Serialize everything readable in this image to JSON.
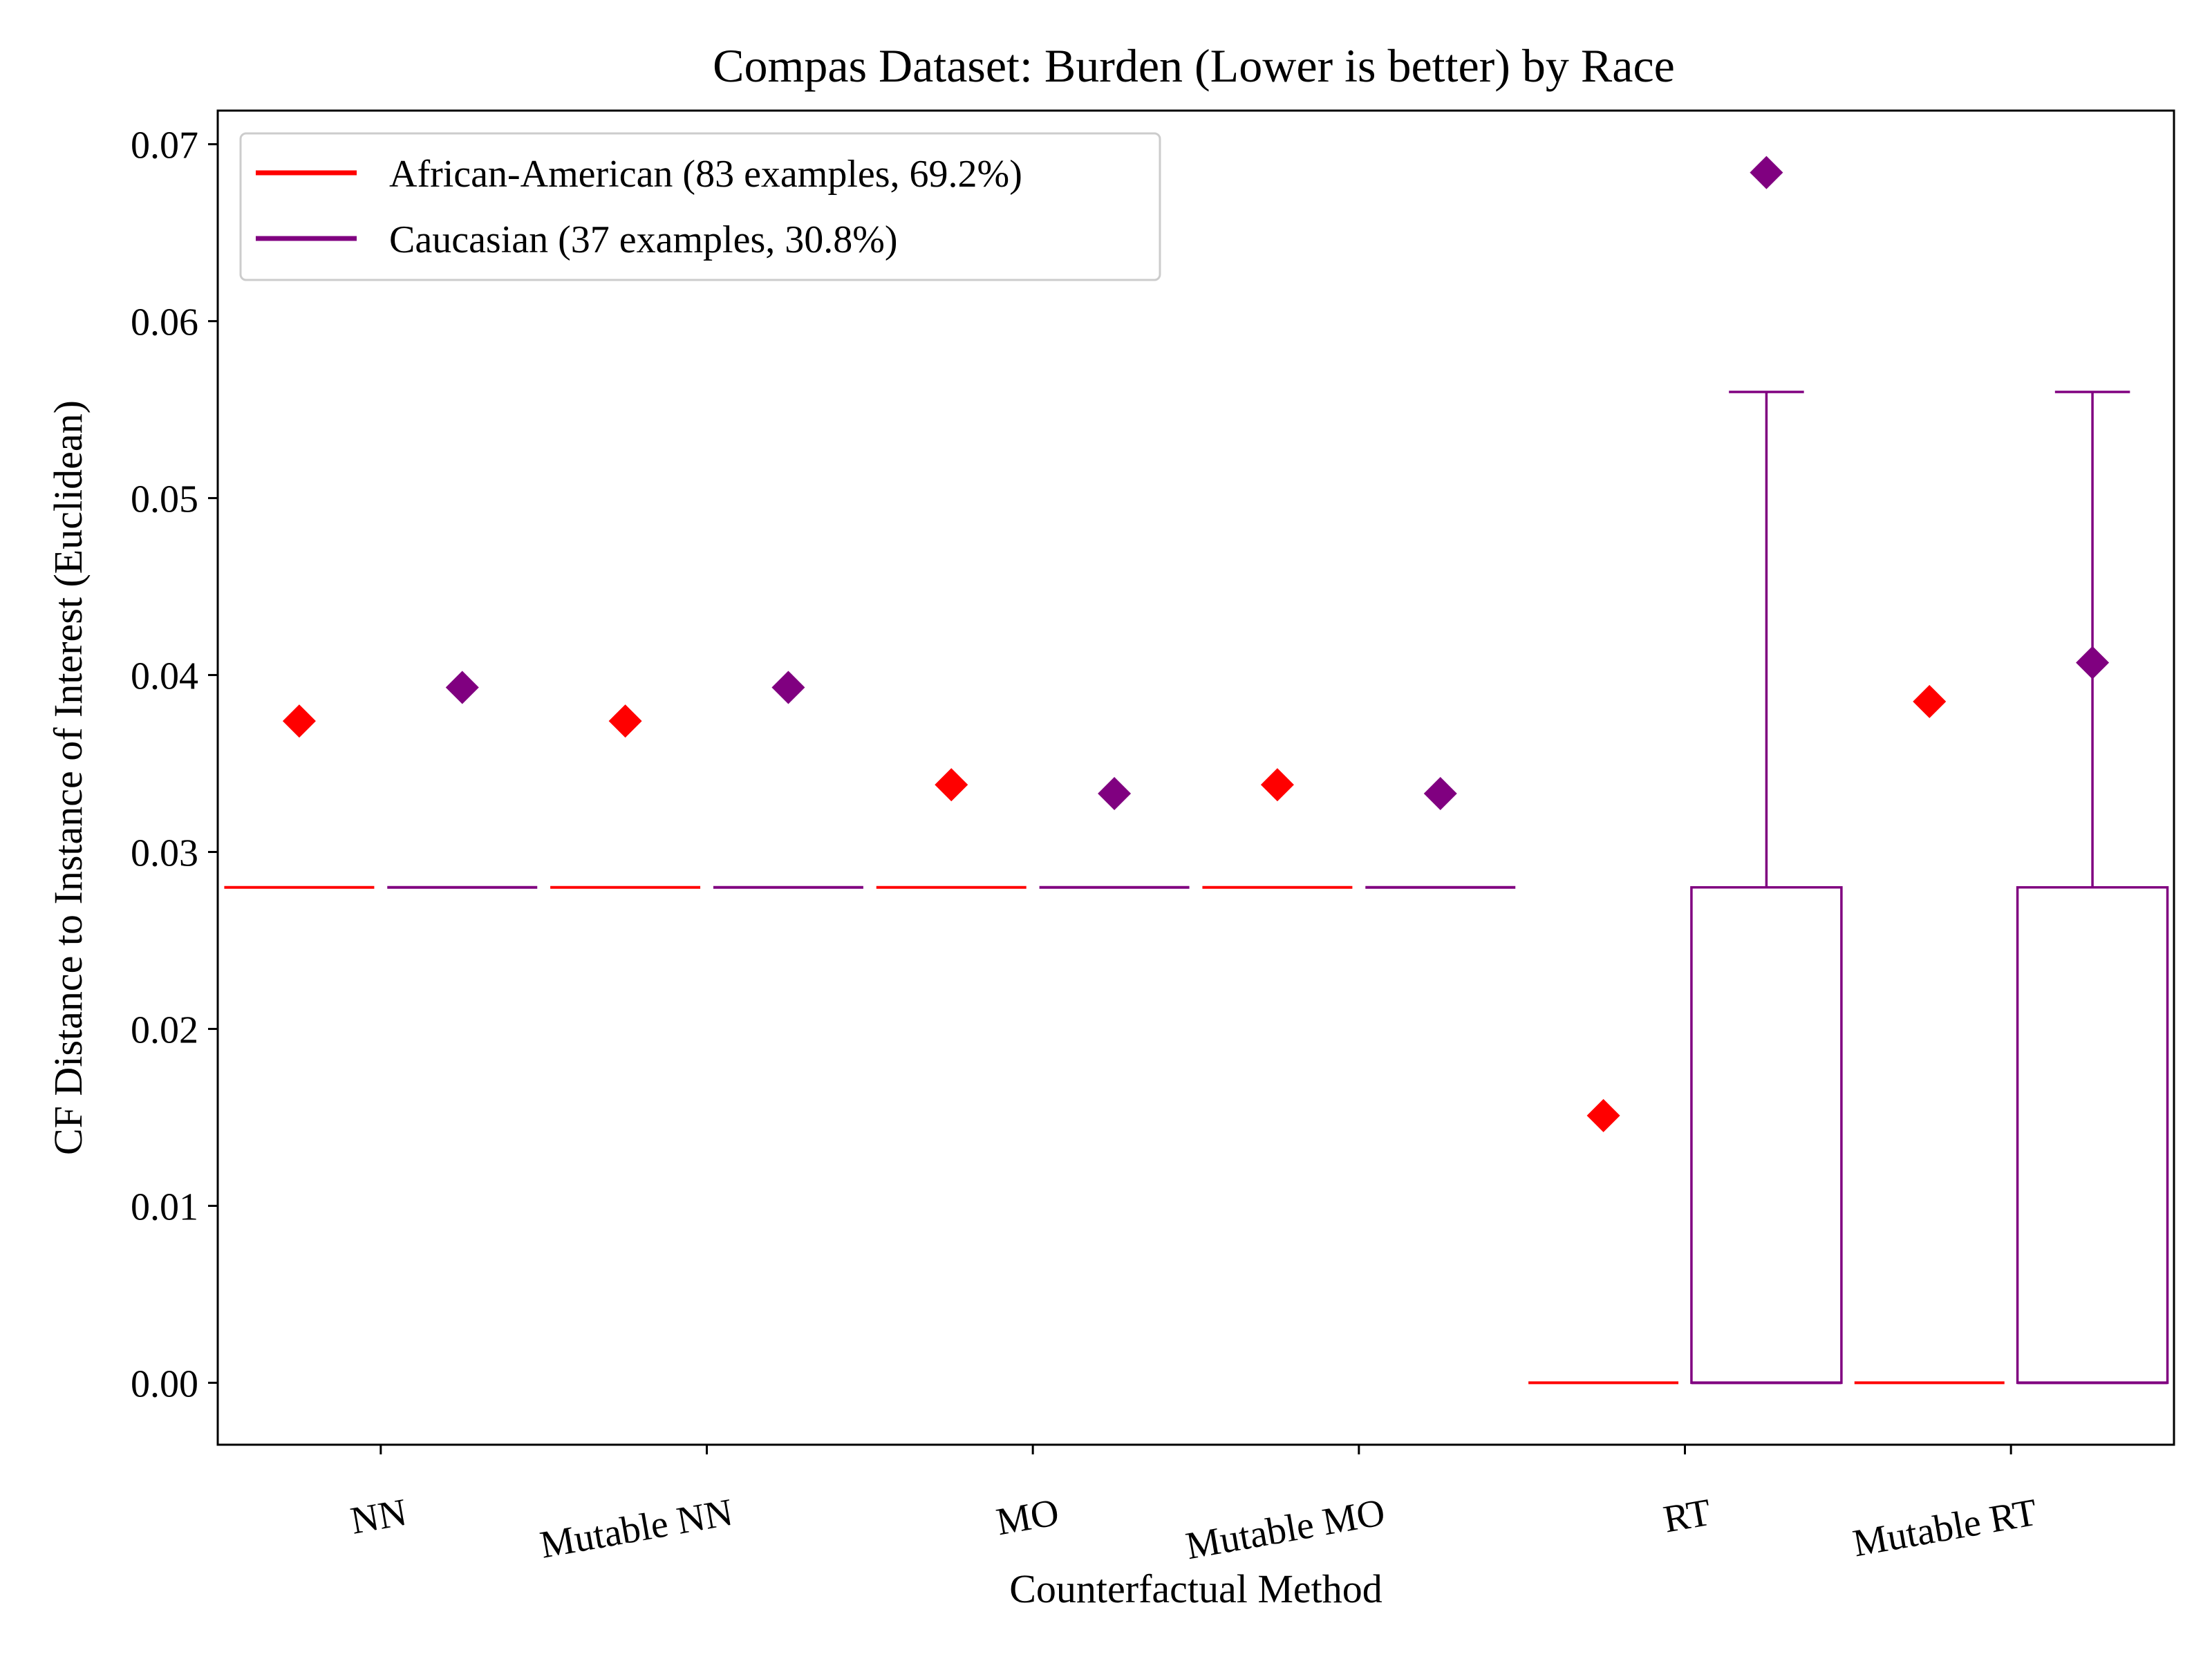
{
  "chart_data": {
    "type": "box",
    "title": "Compas Dataset: Burden (Lower is better) by Race",
    "xlabel": "Counterfactual Method",
    "ylabel": "CF Distance to Instance of Interest (Euclidean)",
    "categories": [
      "NN",
      "Mutable NN",
      "MO",
      "Mutable MO",
      "RT",
      "Mutable RT"
    ],
    "ylim": [
      -0.0035,
      0.0719
    ],
    "yticks": [
      "0.00",
      "0.01",
      "0.02",
      "0.03",
      "0.04",
      "0.05",
      "0.06",
      "0.07"
    ],
    "grid": false,
    "legend_position": "upper-left",
    "series": [
      {
        "name": "African-American (83 examples, 69.2%)",
        "color": "#ff0000",
        "boxes": [
          {
            "q1": 0.028,
            "median": 0.028,
            "q3": 0.028,
            "whislo": 0.028,
            "whishi": 0.028,
            "mean": 0.0374
          },
          {
            "q1": 0.028,
            "median": 0.028,
            "q3": 0.028,
            "whislo": 0.028,
            "whishi": 0.028,
            "mean": 0.0374
          },
          {
            "q1": 0.028,
            "median": 0.028,
            "q3": 0.028,
            "whislo": 0.028,
            "whishi": 0.028,
            "mean": 0.0338
          },
          {
            "q1": 0.028,
            "median": 0.028,
            "q3": 0.028,
            "whislo": 0.028,
            "whishi": 0.028,
            "mean": 0.0338
          },
          {
            "q1": 0.0,
            "median": 0.0,
            "q3": 0.0,
            "whislo": 0.0,
            "whishi": 0.0,
            "mean": 0.0151
          },
          {
            "q1": 0.0,
            "median": 0.0,
            "q3": 0.0,
            "whislo": 0.0,
            "whishi": 0.0,
            "mean": 0.0385
          }
        ]
      },
      {
        "name": "Caucasian (37 examples, 30.8%)",
        "color": "#800080",
        "boxes": [
          {
            "q1": 0.028,
            "median": 0.028,
            "q3": 0.028,
            "whislo": 0.028,
            "whishi": 0.028,
            "mean": 0.0393
          },
          {
            "q1": 0.028,
            "median": 0.028,
            "q3": 0.028,
            "whislo": 0.028,
            "whishi": 0.028,
            "mean": 0.0393
          },
          {
            "q1": 0.028,
            "median": 0.028,
            "q3": 0.028,
            "whislo": 0.028,
            "whishi": 0.028,
            "mean": 0.0333
          },
          {
            "q1": 0.028,
            "median": 0.028,
            "q3": 0.028,
            "whislo": 0.028,
            "whishi": 0.028,
            "mean": 0.0333
          },
          {
            "q1": 0.0,
            "median": 0.0,
            "q3": 0.028,
            "whislo": 0.0,
            "whishi": 0.056,
            "mean": 0.0684
          },
          {
            "q1": 0.0,
            "median": 0.0,
            "q3": 0.028,
            "whislo": 0.0,
            "whishi": 0.056,
            "mean": 0.0407
          }
        ]
      }
    ]
  }
}
